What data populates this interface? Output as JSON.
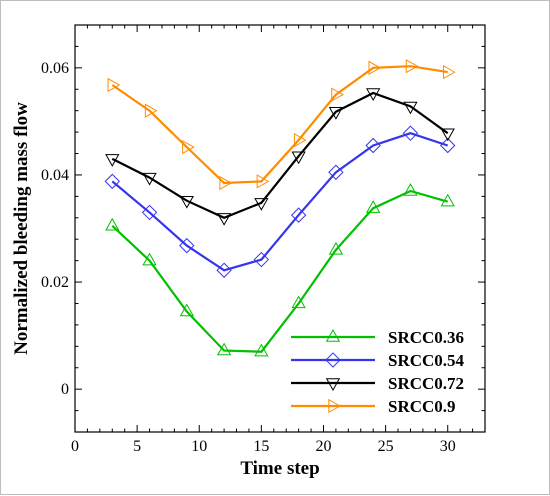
{
  "chart_data": {
    "type": "line",
    "title": "",
    "xlabel": "Time step",
    "ylabel": "Normalized bleeding mass flow",
    "xlim": [
      0,
      33
    ],
    "ylim": [
      -0.008,
      0.068
    ],
    "xticks": [
      0,
      5,
      10,
      15,
      20,
      25,
      30
    ],
    "xtick_labels": [
      "0",
      "5",
      "10",
      "15",
      "20",
      "25",
      "30"
    ],
    "yticks": [
      0,
      0.02,
      0.04,
      0.06
    ],
    "ytick_labels": [
      "0",
      "0.02",
      "0.04",
      "0.06"
    ],
    "grid": false,
    "legend_position": "bottom-right",
    "x": [
      3,
      6,
      9,
      12,
      15,
      18,
      21,
      24,
      27,
      30
    ],
    "series": [
      {
        "name": "SRCC0.36",
        "color": "#00c000",
        "marker": "triangle-up",
        "values": [
          0.0305,
          0.024,
          0.0145,
          0.0072,
          0.007,
          0.016,
          0.026,
          0.0338,
          0.037,
          0.035
        ]
      },
      {
        "name": "SRCC0.54",
        "color": "#3535ee",
        "marker": "diamond",
        "values": [
          0.0388,
          0.033,
          0.0268,
          0.0222,
          0.0242,
          0.0325,
          0.0405,
          0.0455,
          0.0478,
          0.0455
        ]
      },
      {
        "name": "SRCC0.72",
        "color": "#000000",
        "marker": "triangle-down",
        "values": [
          0.043,
          0.0395,
          0.0352,
          0.032,
          0.0348,
          0.0435,
          0.0518,
          0.0553,
          0.0528,
          0.0478
        ]
      },
      {
        "name": "SRCC0.9",
        "color": "#ff8c00",
        "marker": "triangle-right",
        "values": [
          0.0568,
          0.052,
          0.0452,
          0.0385,
          0.0388,
          0.0465,
          0.055,
          0.06,
          0.0603,
          0.0592
        ]
      }
    ]
  }
}
